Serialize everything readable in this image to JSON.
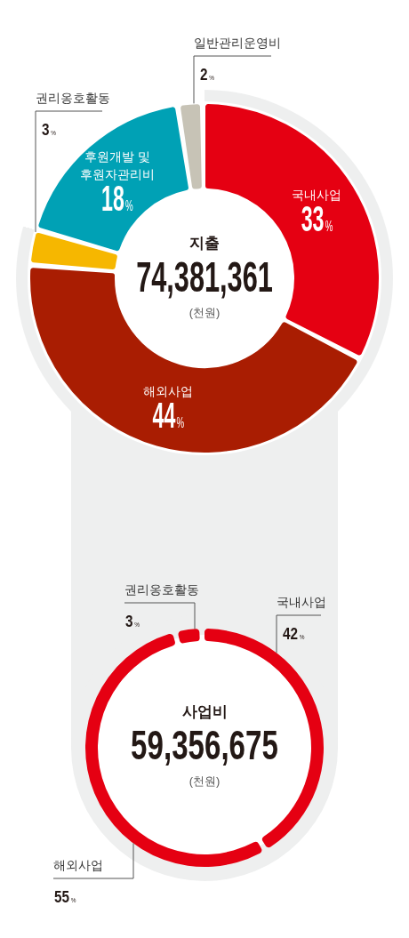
{
  "chart_data": [
    {
      "type": "donut",
      "title": "지출",
      "subtitle": "74,381,361",
      "annotations": [
        "(천원)"
      ],
      "categories": [
        "국내사업",
        "해외사업",
        "권리옹호활동",
        "후원개발 및 후원자관리비",
        "일반관리운영비"
      ],
      "values": [
        33,
        44,
        3,
        18,
        2
      ],
      "colors": [
        "#e50012",
        "#a91d02",
        "#f6b700",
        "#00a1b5",
        "#c7c3b6"
      ],
      "value_labels": [
        "33%",
        "44%",
        "3%",
        "18%",
        "2%"
      ]
    },
    {
      "type": "donut",
      "title": "사업비",
      "subtitle": "59,356,675",
      "annotations": [
        "(천원)"
      ],
      "categories": [
        "국내사업",
        "해외사업",
        "권리옹호활동"
      ],
      "values": [
        42,
        55,
        3
      ],
      "colors": [
        "#e50012",
        "#e50012",
        "#e50012"
      ],
      "value_labels": [
        "42%",
        "55%",
        "3%"
      ]
    }
  ]
}
